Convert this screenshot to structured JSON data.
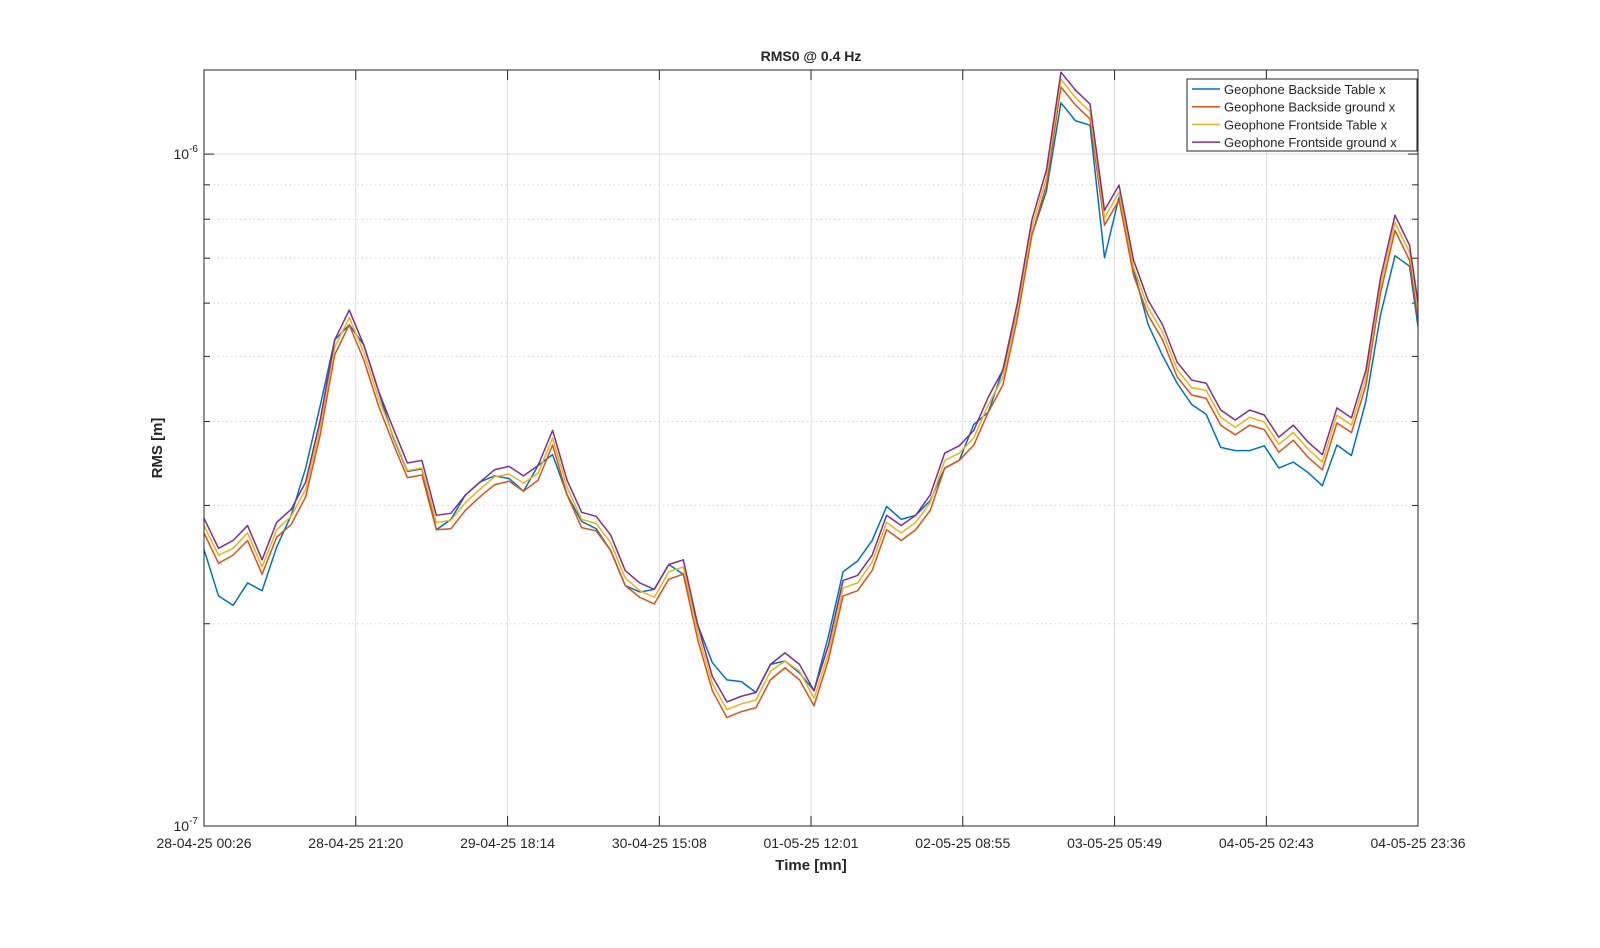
{
  "chart_data": {
    "type": "line",
    "title": "RMS0 @ 0.4 Hz",
    "xlabel": "Time [mn]",
    "ylabel": "RMS [m]",
    "yscale": "log",
    "grid": true,
    "minor_grid": true,
    "legend_corner": "northeast",
    "xlim": [
      "28-04-25 00:26",
      "04-05-25 23:36"
    ],
    "xticks": [
      "28-04-25 00:26",
      "28-04-25 21:20",
      "29-04-25 18:14",
      "30-04-25 15:08",
      "01-05-25 12:01",
      "02-05-25 08:55",
      "03-05-25 05:49",
      "04-05-25 02:43",
      "04-05-25 23:36"
    ],
    "ylim": [
      1e-07,
      1.334e-06
    ],
    "yticks": [
      {
        "value": 1e-07,
        "label": "10^{-7}"
      },
      {
        "value": 1e-06,
        "label": "10^{-6}"
      }
    ],
    "yminor": [
      2e-07,
      3e-07,
      4e-07,
      5e-07,
      6e-07,
      7e-07,
      8e-07,
      9e-07
    ],
    "x": [
      "28-04-25 00:26",
      "28-04-25 02:26",
      "28-04-25 04:26",
      "28-04-25 06:26",
      "28-04-25 08:26",
      "28-04-25 10:26",
      "28-04-25 12:26",
      "28-04-25 14:26",
      "28-04-25 16:26",
      "28-04-25 18:26",
      "28-04-25 20:26",
      "28-04-25 22:26",
      "29-04-25 00:26",
      "29-04-25 02:26",
      "29-04-25 04:26",
      "29-04-25 06:26",
      "29-04-25 08:26",
      "29-04-25 10:26",
      "29-04-25 12:26",
      "29-04-25 14:26",
      "29-04-25 16:26",
      "29-04-25 18:26",
      "29-04-25 20:26",
      "29-04-25 22:26",
      "30-04-25 00:26",
      "30-04-25 02:26",
      "30-04-25 04:26",
      "30-04-25 06:26",
      "30-04-25 08:26",
      "30-04-25 10:26",
      "30-04-25 12:26",
      "30-04-25 14:26",
      "30-04-25 16:26",
      "30-04-25 18:26",
      "30-04-25 20:26",
      "30-04-25 22:26",
      "01-05-25 00:26",
      "01-05-25 02:26",
      "01-05-25 04:26",
      "01-05-25 06:26",
      "01-05-25 08:26",
      "01-05-25 10:26",
      "01-05-25 12:26",
      "01-05-25 14:26",
      "01-05-25 16:26",
      "01-05-25 18:26",
      "01-05-25 20:26",
      "01-05-25 22:26",
      "02-05-25 00:26",
      "02-05-25 02:26",
      "02-05-25 04:26",
      "02-05-25 06:26",
      "02-05-25 08:26",
      "02-05-25 10:26",
      "02-05-25 12:26",
      "02-05-25 14:26",
      "02-05-25 16:26",
      "02-05-25 18:26",
      "02-05-25 20:26",
      "02-05-25 22:26",
      "03-05-25 00:26",
      "03-05-25 02:26",
      "03-05-25 04:26",
      "03-05-25 06:26",
      "03-05-25 08:26",
      "03-05-25 10:26",
      "03-05-25 12:26",
      "03-05-25 14:26",
      "03-05-25 16:26",
      "03-05-25 18:26",
      "03-05-25 20:26",
      "03-05-25 22:26",
      "04-05-25 00:26",
      "04-05-25 02:26",
      "04-05-25 04:26",
      "04-05-25 06:26",
      "04-05-25 08:26",
      "04-05-25 10:26",
      "04-05-25 12:26",
      "04-05-25 14:26",
      "04-05-25 16:26",
      "04-05-25 18:26",
      "04-05-25 20:26",
      "04-05-25 22:26",
      "04-05-25 23:36"
    ],
    "series": [
      {
        "name": "Geophone Backside Table x",
        "color": "#0072BD",
        "values": [
          2.58e-07,
          2.2e-07,
          2.13e-07,
          2.3e-07,
          2.24e-07,
          2.6e-07,
          2.9e-07,
          3.41e-07,
          4.22e-07,
          5.29e-07,
          5.57e-07,
          5.2e-07,
          4.45e-07,
          3.8e-07,
          3.37e-07,
          3.4e-07,
          2.76e-07,
          2.86e-07,
          3.11e-07,
          3.25e-07,
          3.32e-07,
          3.29e-07,
          3.15e-07,
          3.44e-07,
          3.57e-07,
          3.11e-07,
          2.84e-07,
          2.77e-07,
          2.57e-07,
          2.28e-07,
          2.23e-07,
          2.25e-07,
          2.45e-07,
          2.37e-07,
          1.99e-07,
          1.75e-07,
          1.65e-07,
          1.64e-07,
          1.58e-07,
          1.74e-07,
          1.76e-07,
          1.69e-07,
          1.59e-07,
          1.92e-07,
          2.39e-07,
          2.48e-07,
          2.66e-07,
          2.99e-07,
          2.86e-07,
          2.9e-07,
          3.05e-07,
          3.41e-07,
          3.5e-07,
          3.96e-07,
          4.13e-07,
          4.77e-07,
          5.82e-07,
          7.58e-07,
          8.81e-07,
          1.192e-06,
          1.121e-06,
          1.104e-06,
          7.01e-07,
          8.63e-07,
          6.74e-07,
          5.58e-07,
          5.01e-07,
          4.56e-07,
          4.24e-07,
          4.1e-07,
          3.66e-07,
          3.62e-07,
          3.62e-07,
          3.68e-07,
          3.41e-07,
          3.48e-07,
          3.36e-07,
          3.21e-07,
          3.69e-07,
          3.56e-07,
          4.29e-07,
          5.76e-07,
          7.06e-07,
          6.81e-07,
          5.54e-07
        ]
      },
      {
        "name": "Geophone Backside ground x",
        "color": "#D95319",
        "values": [
          2.73e-07,
          2.46e-07,
          2.53e-07,
          2.66e-07,
          2.37e-07,
          2.69e-07,
          2.81e-07,
          3.09e-07,
          3.82e-07,
          5.03e-07,
          5.57e-07,
          4.94e-07,
          4.23e-07,
          3.72e-07,
          3.3e-07,
          3.33e-07,
          2.76e-07,
          2.77e-07,
          2.95e-07,
          3.09e-07,
          3.22e-07,
          3.26e-07,
          3.15e-07,
          3.27e-07,
          3.69e-07,
          3.11e-07,
          2.78e-07,
          2.75e-07,
          2.57e-07,
          2.28e-07,
          2.19e-07,
          2.14e-07,
          2.33e-07,
          2.37e-07,
          1.89e-07,
          1.59e-07,
          1.45e-07,
          1.48e-07,
          1.5e-07,
          1.65e-07,
          1.72e-07,
          1.65e-07,
          1.51e-07,
          1.77e-07,
          2.2e-07,
          2.24e-07,
          2.4e-07,
          2.76e-07,
          2.66e-07,
          2.76e-07,
          2.95e-07,
          3.41e-07,
          3.5e-07,
          3.69e-07,
          4.13e-07,
          4.53e-07,
          5.7e-07,
          7.58e-07,
          9e-07,
          1.258e-06,
          1.183e-06,
          1.128e-06,
          7.84e-07,
          8.54e-07,
          6.6e-07,
          5.76e-07,
          5.29e-07,
          4.66e-07,
          4.38e-07,
          4.33e-07,
          3.95e-07,
          3.82e-07,
          3.95e-07,
          3.89e-07,
          3.6e-07,
          3.75e-07,
          3.54e-07,
          3.39e-07,
          3.98e-07,
          3.85e-07,
          4.53e-07,
          6.21e-07,
          7.7e-07,
          6.95e-07,
          5.72e-07
        ]
      },
      {
        "name": "Geophone Frontside Table x",
        "color": "#EDB120",
        "values": [
          2.8e-07,
          2.53e-07,
          2.59e-07,
          2.73e-07,
          2.43e-07,
          2.76e-07,
          2.89e-07,
          3.17e-07,
          3.92e-07,
          5.16e-07,
          5.71e-07,
          5.07e-07,
          4.34e-07,
          3.82e-07,
          3.38e-07,
          3.41e-07,
          2.83e-07,
          2.85e-07,
          3.03e-07,
          3.17e-07,
          3.31e-07,
          3.34e-07,
          3.24e-07,
          3.35e-07,
          3.78e-07,
          3.19e-07,
          2.86e-07,
          2.82e-07,
          2.64e-07,
          2.34e-07,
          2.24e-07,
          2.19e-07,
          2.39e-07,
          2.43e-07,
          1.94e-07,
          1.63e-07,
          1.49e-07,
          1.52e-07,
          1.54e-07,
          1.7e-07,
          1.76e-07,
          1.7e-07,
          1.55e-07,
          1.81e-07,
          2.26e-07,
          2.3e-07,
          2.47e-07,
          2.83e-07,
          2.73e-07,
          2.83e-07,
          3.03e-07,
          3.5e-07,
          3.59e-07,
          3.78e-07,
          4.24e-07,
          4.65e-07,
          5.85e-07,
          7.78e-07,
          9.23e-07,
          1.291e-06,
          1.214e-06,
          1.157e-06,
          8.04e-07,
          8.77e-07,
          6.78e-07,
          5.91e-07,
          5.43e-07,
          4.78e-07,
          4.49e-07,
          4.45e-07,
          4.06e-07,
          3.92e-07,
          4.06e-07,
          3.99e-07,
          3.7e-07,
          3.85e-07,
          3.64e-07,
          3.48e-07,
          4.09e-07,
          3.95e-07,
          4.65e-07,
          6.38e-07,
          7.91e-07,
          7.14e-07,
          5.87e-07
        ]
      },
      {
        "name": "Geophone Frontside ground x",
        "color": "#7E2F8E",
        "values": [
          2.87e-07,
          2.59e-07,
          2.66e-07,
          2.8e-07,
          2.49e-07,
          2.83e-07,
          2.96e-07,
          3.25e-07,
          4.02e-07,
          5.29e-07,
          5.86e-07,
          5.2e-07,
          4.45e-07,
          3.92e-07,
          3.47e-07,
          3.5e-07,
          2.9e-07,
          2.92e-07,
          3.11e-07,
          3.25e-07,
          3.39e-07,
          3.43e-07,
          3.32e-07,
          3.44e-07,
          3.88e-07,
          3.27e-07,
          2.93e-07,
          2.89e-07,
          2.71e-07,
          2.4e-07,
          2.3e-07,
          2.25e-07,
          2.45e-07,
          2.49e-07,
          1.99e-07,
          1.67e-07,
          1.53e-07,
          1.56e-07,
          1.58e-07,
          1.74e-07,
          1.81e-07,
          1.74e-07,
          1.59e-07,
          1.86e-07,
          2.32e-07,
          2.36e-07,
          2.53e-07,
          2.9e-07,
          2.8e-07,
          2.9e-07,
          3.11e-07,
          3.59e-07,
          3.68e-07,
          3.88e-07,
          4.35e-07,
          4.77e-07,
          6e-07,
          7.98e-07,
          9.47e-07,
          1.324e-06,
          1.245e-06,
          1.187e-06,
          8.25e-07,
          8.99e-07,
          6.95e-07,
          6.06e-07,
          5.57e-07,
          4.9e-07,
          4.61e-07,
          4.56e-07,
          4.16e-07,
          4.02e-07,
          4.16e-07,
          4.09e-07,
          3.79e-07,
          3.95e-07,
          3.73e-07,
          3.57e-07,
          4.19e-07,
          4.05e-07,
          4.77e-07,
          6.54e-07,
          8.11e-07,
          7.32e-07,
          6.02e-07
        ]
      }
    ]
  }
}
